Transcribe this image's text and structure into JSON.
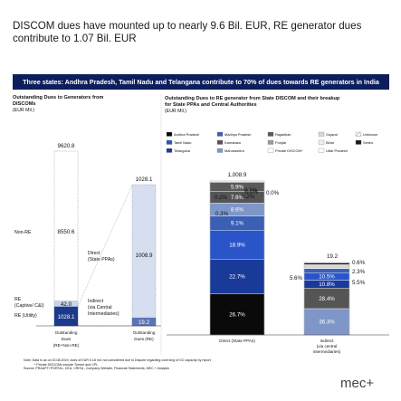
{
  "title": "DISCOM dues have mounted up to nearly 9.6 Bil. EUR, RE generator dues contribute to 1.07 Bil. EUR",
  "banner": "Three states: Andhra Pradesh, Tamil Nadu and Telangana contribute to 70% of dues towards RE generators in India",
  "left_panel": {
    "title_line1": "Outstanding Dues to Generators from",
    "title_line2": "DISCOMs",
    "unit": "(EUR Mil.)"
  },
  "right_panel": {
    "title_line1": "Outstanding Dues to RE generator from State DISCOM and their breakup",
    "title_line2": "for State PPAs and Central Authorities",
    "unit": "(EUR Mil.)"
  },
  "labels": {
    "non_re": "Non-RE",
    "re_captive": "RE",
    "re_captive2": "(Captive/ C&I)",
    "re_utility": "RE (Utility)",
    "direct": "Direct",
    "direct2": "(State PPAs)",
    "indirect": "Indirect",
    "indirect2": "(via Central",
    "indirect3": "Intermediaries)"
  },
  "chart_data": [
    {
      "type": "bar",
      "subtype": "stacked",
      "categories": [
        "Outstanding Dues (RE+Non-RE)",
        "Outstanding Dues (RE)"
      ],
      "category_lines": [
        [
          "Outstanding",
          "Dues",
          "(RE+Non-RE)"
        ],
        [
          "Outstanding",
          "Dues (RE)"
        ]
      ],
      "totals": [
        "9620.8",
        "1028.1"
      ],
      "series": [
        {
          "name": "RE (Utility)",
          "values": [
            1028.1,
            null
          ],
          "label": "1028.1",
          "color": "#1c3a8a"
        },
        {
          "name": "RE (Captive/ C&I)",
          "values": [
            42.0,
            null
          ],
          "label": "42.0",
          "color": "#c7d3ea"
        },
        {
          "name": "Non-RE",
          "values": [
            8550.6,
            null
          ],
          "label": "8550.6",
          "color": "#ffffff"
        },
        {
          "name": "Indirect (via Central Intermediaries)",
          "values": [
            null,
            19.2
          ],
          "label": "19.2",
          "color": "#5c76b5"
        },
        {
          "name": "Direct (State PPAs)",
          "values": [
            null,
            1008.9
          ],
          "label": "1008.9",
          "color": "#d6deef"
        }
      ]
    },
    {
      "type": "bar",
      "subtype": "stacked",
      "categories": [
        "Direct (State PPAs)",
        "Indirect (via central intermediaries)"
      ],
      "category_lines": [
        [
          "Direct (State PPAs)"
        ],
        [
          "Indirect",
          "(via central",
          "intermediaries)"
        ]
      ],
      "totals": [
        "1,008.9",
        "19.2"
      ],
      "legend": [
        {
          "name": "Andhra Pradesh",
          "color": "#0a0a0a"
        },
        {
          "name": "Madhya Pradesh",
          "color": "#3a5fb4"
        },
        {
          "name": "Rajasthan",
          "color": "#5a5a5a"
        },
        {
          "name": "Gujarat",
          "color": "#d7d7d7"
        },
        {
          "name": "Unknown",
          "color": "#ffffff",
          "pattern": "hatch"
        },
        {
          "name": "Tamil Nadu",
          "color": "#2a55c9"
        },
        {
          "name": "Karnataka",
          "color": "#555555"
        },
        {
          "name": "Punjab",
          "color": "#9c9c9c"
        },
        {
          "name": "Bihar",
          "color": "#eeeeee"
        },
        {
          "name": "Series",
          "color": "#1a1a1a"
        },
        {
          "name": "Telangana",
          "color": "#1a3a9a"
        },
        {
          "name": "Maharashtra",
          "color": "#7f96c9"
        },
        {
          "name": "Private DISCOM*",
          "color": "#ffffff"
        },
        {
          "name": "Uttar Pradesh",
          "color": "#ffffff"
        }
      ],
      "stacks": [
        {
          "total": 1008.9,
          "segments": [
            {
              "name": "Andhra Pradesh",
              "value": 26.7,
              "label": "26.7%"
            },
            {
              "name": "Telangana",
              "value": 22.7,
              "label": "22.7%"
            },
            {
              "name": "Tamil Nadu",
              "value": 18.9,
              "label": "18.9%"
            },
            {
              "name": "Madhya Pradesh",
              "value": 9.1,
              "label": "9.1%"
            },
            {
              "name": "Maharashtra",
              "value": 8.6,
              "label": "8.6%"
            },
            {
              "name": "Karnataka",
              "value": 7.6,
              "label": "7.6%"
            },
            {
              "name": "Rajasthan",
              "value": 5.9,
              "label": "5.9%"
            },
            {
              "name": "Punjab",
              "value": 0.3,
              "label": "0.3%"
            },
            {
              "name": "Gujarat",
              "value": 0.2,
              "label": "0.2%"
            },
            {
              "name": "Bihar",
              "value": 0.0,
              "label": "0.0%"
            },
            {
              "name": "Uttar Pradesh",
              "value": 0.1,
              "label": "0.1%"
            },
            {
              "name": "Private DISCOM*",
              "value": 0.2,
              "label": "0.2%"
            },
            {
              "name": "Unknown",
              "value": 0.0,
              "label": "0.0%"
            }
          ]
        },
        {
          "total": 19.2,
          "segments": [
            {
              "name": "Maharashtra",
              "value": 36.3,
              "label": "36.3%"
            },
            {
              "name": "Karnataka",
              "value": 28.4,
              "label": "28.4%"
            },
            {
              "name": "Telangana",
              "value": 10.8,
              "label": "10.8%"
            },
            {
              "name": "Tamil Nadu",
              "value": 10.5,
              "label": "10.5%"
            },
            {
              "name": "Madhya Pradesh",
              "value": 5.6,
              "label": "5.6%"
            },
            {
              "name": "Gujarat",
              "value": 5.5,
              "label": "5.5%"
            },
            {
              "name": "Andhra Pradesh",
              "value": 2.3,
              "label": "2.3%"
            },
            {
              "name": "Unknown",
              "value": 0.6,
              "label": "0.6%"
            }
          ]
        }
      ]
    }
  ],
  "footnote": {
    "line1": "Note:  Data is as on 20.08.2019; dues of EUR 0.18 mil. not considered due to Dispute regarding overrcing of DC capacity by report",
    "line2": "* Private DISCOMs include Torrent and CPL",
    "line3": "Source:  PRAAPTI PORTAL; CEA, CRISIL, Company Website, Financial Statements, MEC + Analysis"
  },
  "logo": "mec+"
}
